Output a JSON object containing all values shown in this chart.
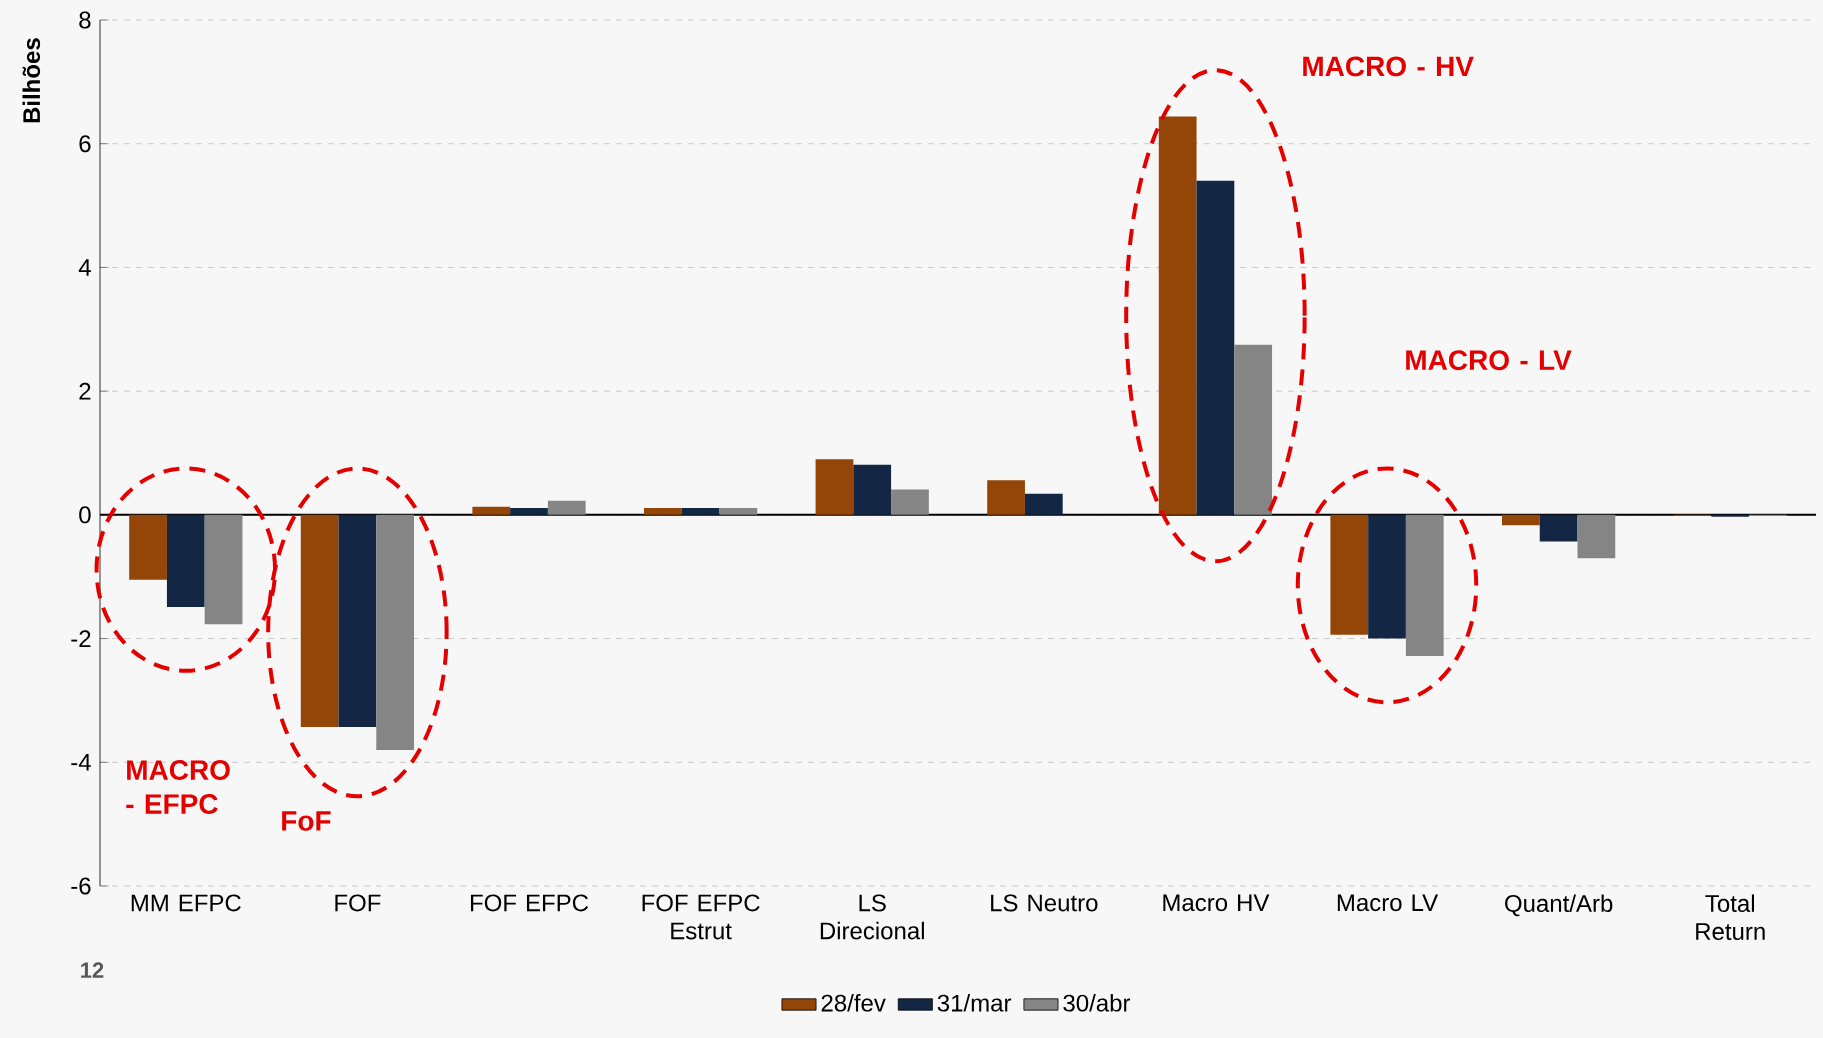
{
  "chart_data": {
    "type": "bar",
    "ylabel": "Bilhões",
    "categories": [
      "MM EFPC",
      "FOF",
      "FOF EFPC",
      "FOF EFPC Estrut",
      "LS Direcional",
      "LS Neutro",
      "Macro HV",
      "Macro LV",
      "Quant/Arb",
      "Total Return"
    ],
    "series": [
      {
        "name": "28/fev",
        "color": "#944508",
        "values": [
          -1.05,
          -3.43,
          0.13,
          0.11,
          0.9,
          0.56,
          6.44,
          -1.94,
          -0.17,
          -0.02
        ]
      },
      {
        "name": "31/mar",
        "color": "#132744",
        "values": [
          -1.49,
          -3.43,
          0.11,
          0.11,
          0.81,
          0.34,
          5.4,
          -2.0,
          -0.43,
          -0.03
        ]
      },
      {
        "name": "30/abr",
        "color": "#858585",
        "values": [
          -1.77,
          -3.8,
          0.23,
          0.11,
          0.41,
          0.0,
          2.75,
          -2.28,
          -0.7,
          -0.02
        ]
      }
    ],
    "ylim": [
      -6,
      8
    ],
    "yticks": [
      -6,
      -4,
      -2,
      0,
      2,
      4,
      6,
      8
    ],
    "grid": "y",
    "legend": "bottom",
    "annotations": [
      "MACRO - EFPC",
      "FoF",
      "MACRO - HV",
      "MACRO - LV",
      "12"
    ]
  }
}
